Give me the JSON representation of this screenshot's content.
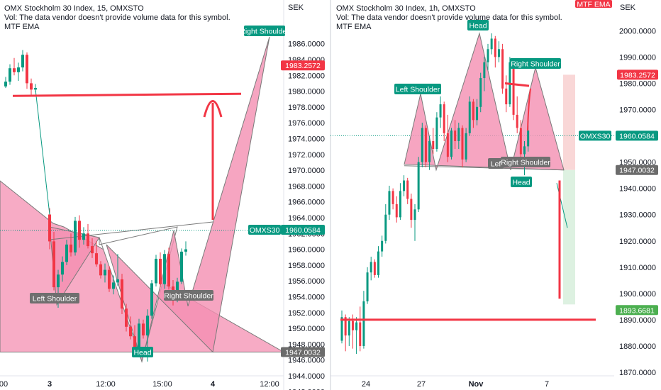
{
  "colors": {
    "up": "#089981",
    "down": "#f23645",
    "pattern_fill": "#f48fb1",
    "pattern_stroke": "#7a7a7a",
    "level_line": "#f23645",
    "label_dark": "#6f6f6f",
    "label_teal": "#089981",
    "target_red": "#f23645",
    "stop_zone": "#f7c6c6",
    "profit_zone": "#d4eed9"
  },
  "left_panel": {
    "header": {
      "line1": "OMX Stockholm 30 Index, 15, OMXSTO",
      "line2": "Vol: The data vendor doesn't provide volume data for this symbol.",
      "line3": "MTF EMA"
    },
    "currency": "SEK",
    "x_ticks": [
      "00",
      "3",
      "12:00",
      "15:00",
      "4",
      "12:00"
    ],
    "bold_x_ticks": [
      "3",
      "4"
    ],
    "pattern_labels": {
      "left_shoulder": "Left Shoulder",
      "head": "Head",
      "right_shoulder": "Right Shoulder",
      "right_shoulder_top": "Right Shoulder"
    },
    "price_tags": {
      "target": "1983.2572",
      "current_symbol": "OMXS30",
      "current": "1960.0584",
      "neckline": "1947.0032"
    }
  },
  "right_panel": {
    "header": {
      "line1": "OMX Stockholm 30 Index, 1h, OMXSTO",
      "line2": "Vol: The data vendor doesn't provide volume data for this symbol.",
      "line3": "MTF EMA"
    },
    "currency": "SEK",
    "mtf_ema_tag": "MTF EMA",
    "x_ticks": [
      "24",
      "27",
      "Nov",
      "7"
    ],
    "bold_x_ticks": [
      "Nov"
    ],
    "pattern_labels": {
      "left_shoulder": "Left Shoulder",
      "head": "Head",
      "right_shoulder": "Right Shoulder",
      "inner_left": "Left Shoulder",
      "inner_head": "Head",
      "inner_right_shoulder": "Right Shoulder"
    },
    "price_tags": {
      "target": "1983.2572",
      "current_symbol": "OMXS30",
      "current": "1960.0584",
      "neckline": "1947.0032",
      "bottom": "1893.6681"
    }
  },
  "chart_data": [
    {
      "type": "candlestick",
      "title": "OMX Stockholm 30 Index, 15, OMXSTO",
      "ylabel": "SEK",
      "ylim": [
        1941,
        1989
      ],
      "y_ticks": [
        1942,
        1944,
        1946,
        1948,
        1950,
        1952,
        1954,
        1956,
        1958,
        1960,
        1962,
        1964,
        1966,
        1968,
        1970,
        1972,
        1974,
        1976,
        1978,
        1980,
        1982,
        1984,
        1986
      ],
      "candles_ohlc": [
        [
          1980.6,
          1981.8,
          1980.4,
          1981.2
        ],
        [
          1981.2,
          1983.4,
          1980.8,
          1982.9
        ],
        [
          1982.9,
          1984.2,
          1982.0,
          1982.4
        ],
        [
          1982.4,
          1983.6,
          1981.3,
          1983.0
        ],
        [
          1983.0,
          1985.2,
          1982.5,
          1984.6
        ],
        [
          1984.6,
          1984.9,
          1980.3,
          1981.0
        ],
        [
          1981.0,
          1981.6,
          1979.4,
          1980.2
        ],
        [
          1980.2,
          1980.9,
          1979.9,
          1980.4
        ],
        [
          1964.4,
          1965.2,
          1960.0,
          1961.0
        ],
        [
          1961.0,
          1962.2,
          1954.8,
          1955.2
        ],
        [
          1955.2,
          1957.4,
          1952.6,
          1956.8
        ],
        [
          1956.8,
          1959.1,
          1955.9,
          1958.4
        ],
        [
          1958.4,
          1961.2,
          1958.0,
          1960.6
        ],
        [
          1960.6,
          1962.0,
          1959.1,
          1959.6
        ],
        [
          1959.6,
          1964.1,
          1959.2,
          1963.6
        ],
        [
          1963.6,
          1964.3,
          1960.2,
          1961.2
        ],
        [
          1961.2,
          1962.8,
          1960.6,
          1962.0
        ],
        [
          1962.0,
          1963.2,
          1960.1,
          1960.4
        ],
        [
          1960.4,
          1961.4,
          1958.9,
          1959.5
        ],
        [
          1959.5,
          1961.0,
          1957.8,
          1958.1
        ],
        [
          1958.1,
          1958.5,
          1956.3,
          1956.7
        ],
        [
          1956.7,
          1958.2,
          1955.8,
          1957.4
        ],
        [
          1957.4,
          1957.9,
          1954.6,
          1955.0
        ],
        [
          1955.0,
          1956.7,
          1954.3,
          1955.8
        ],
        [
          1955.8,
          1959.4,
          1955.4,
          1956.2
        ],
        [
          1956.2,
          1956.9,
          1951.8,
          1952.5
        ],
        [
          1952.5,
          1953.1,
          1949.6,
          1950.2
        ],
        [
          1950.2,
          1951.5,
          1948.6,
          1949.0
        ],
        [
          1949.0,
          1950.4,
          1946.4,
          1947.4
        ],
        [
          1947.4,
          1951.2,
          1946.9,
          1950.6
        ],
        [
          1950.6,
          1951.1,
          1948.7,
          1949.1
        ],
        [
          1949.1,
          1952.4,
          1945.8,
          1951.6
        ],
        [
          1951.6,
          1956.1,
          1951.2,
          1955.7
        ],
        [
          1955.7,
          1959.3,
          1955.3,
          1958.8
        ],
        [
          1958.8,
          1959.6,
          1955.2,
          1955.6
        ],
        [
          1955.6,
          1959.9,
          1955.0,
          1959.4
        ],
        [
          1959.4,
          1960.2,
          1954.9,
          1955.3
        ],
        [
          1955.3,
          1956.1,
          1952.9,
          1953.8
        ],
        [
          1953.8,
          1956.4,
          1953.3,
          1955.9
        ],
        [
          1955.9,
          1960.1,
          1955.6,
          1959.7
        ],
        [
          1959.7,
          1961.0,
          1959.2,
          1960.0
        ]
      ],
      "annotations": {
        "target_level": 1983.2572,
        "current_price": 1960.0584,
        "neckline": 1947.0032,
        "resistance_line": 1979.4,
        "pattern_points": {
          "left_shoulder": 1953.0,
          "head": 1945.8,
          "right_shoulder": 1953.0,
          "right_shoulder_top": 1985.6
        }
      }
    },
    {
      "type": "candlestick",
      "title": "OMX Stockholm 30 Index, 1h, OMXSTO",
      "ylabel": "SEK",
      "ylim": [
        1866,
        2008
      ],
      "y_ticks": [
        1870,
        1880,
        1890,
        1900,
        1910,
        1920,
        1930,
        1940,
        1950,
        1960,
        1970,
        1980,
        1990,
        2000
      ],
      "candles_ohlc": [
        [
          1882.0,
          1893.5,
          1881.0,
          1891.0
        ],
        [
          1891.0,
          1892.0,
          1878.0,
          1884.0
        ],
        [
          1884.0,
          1891.0,
          1880.0,
          1889.5
        ],
        [
          1889.5,
          1892.0,
          1879.0,
          1886.0
        ],
        [
          1886.0,
          1891.0,
          1877.0,
          1889.0
        ],
        [
          1889.0,
          1895.0,
          1878.0,
          1880.0
        ],
        [
          1880.0,
          1901.0,
          1879.0,
          1897.0
        ],
        [
          1897.0,
          1910.0,
          1896.0,
          1908.0
        ],
        [
          1908.0,
          1914.0,
          1905.0,
          1912.0
        ],
        [
          1912.0,
          1913.0,
          1906.0,
          1907.0
        ],
        [
          1907.0,
          1918.0,
          1906.0,
          1916.0
        ],
        [
          1916.0,
          1922.0,
          1914.0,
          1920.0
        ],
        [
          1920.0,
          1934.0,
          1919.0,
          1930.0
        ],
        [
          1930.0,
          1941.0,
          1928.0,
          1939.0
        ],
        [
          1939.0,
          1940.0,
          1932.0,
          1934.0
        ],
        [
          1934.0,
          1937.0,
          1927.0,
          1929.0
        ],
        [
          1929.0,
          1942.0,
          1928.0,
          1939.0
        ],
        [
          1939.0,
          1945.0,
          1937.0,
          1943.0
        ],
        [
          1943.0,
          1944.0,
          1934.0,
          1936.0
        ],
        [
          1936.0,
          1938.0,
          1925.0,
          1928.0
        ],
        [
          1928.0,
          1934.0,
          1920.0,
          1932.0
        ],
        [
          1932.0,
          1952.0,
          1931.0,
          1950.0
        ],
        [
          1950.0,
          1965.0,
          1948.0,
          1963.0
        ],
        [
          1963.0,
          1964.0,
          1948.0,
          1950.0
        ],
        [
          1950.0,
          1960.0,
          1947.0,
          1958.0
        ],
        [
          1958.0,
          1963.0,
          1953.0,
          1955.0
        ],
        [
          1955.0,
          1969.0,
          1954.0,
          1967.0
        ],
        [
          1967.0,
          1975.0,
          1963.0,
          1972.0
        ],
        [
          1972.0,
          1973.0,
          1958.0,
          1961.0
        ],
        [
          1961.0,
          1968.0,
          1950.0,
          1952.0
        ],
        [
          1952.0,
          1963.0,
          1951.0,
          1962.0
        ],
        [
          1962.0,
          1966.0,
          1955.0,
          1958.0
        ],
        [
          1958.0,
          1965.0,
          1955.0,
          1963.0
        ],
        [
          1963.0,
          1964.0,
          1948.0,
          1951.0
        ],
        [
          1951.0,
          1963.0,
          1950.0,
          1961.0
        ],
        [
          1961.0,
          1975.0,
          1960.0,
          1973.0
        ],
        [
          1973.0,
          1974.0,
          1963.0,
          1966.0
        ],
        [
          1966.0,
          1974.0,
          1964.0,
          1971.0
        ],
        [
          1971.0,
          1984.0,
          1969.0,
          1982.0
        ],
        [
          1982.0,
          1990.0,
          1977.0,
          1988.0
        ],
        [
          1988.0,
          1995.0,
          1985.0,
          1993.0
        ],
        [
          1993.0,
          1999.0,
          1991.0,
          1997.0
        ],
        [
          1997.0,
          1998.0,
          1986.0,
          1990.0
        ],
        [
          1990.0,
          1996.0,
          1988.0,
          1993.0
        ],
        [
          1993.0,
          1995.0,
          1976.0,
          1978.0
        ],
        [
          1978.0,
          1983.0,
          1969.0,
          1972.0
        ],
        [
          1972.0,
          1990.0,
          1971.0,
          1988.0
        ],
        [
          1988.0,
          1989.0,
          1966.0,
          1968.0
        ],
        [
          1968.0,
          1975.0,
          1961.0,
          1963.0
        ],
        [
          1963.0,
          1966.0,
          1950.0,
          1953.0
        ],
        [
          1953.0,
          1958.0,
          1945.0,
          1956.0
        ],
        [
          1956.0,
          1964.0,
          1954.0,
          1962.0
        ]
      ],
      "annotations": {
        "target_level": 1983.2572,
        "current_price": 1960.0584,
        "neckline": 1947.0032,
        "bottom_target": 1893.6681,
        "support_line": 1890.0,
        "pattern_points": {
          "left_shoulder": 1976.0,
          "head": 1999.0,
          "right_shoulder": 1986.0,
          "inner_head": 1945.0
        }
      }
    }
  ]
}
